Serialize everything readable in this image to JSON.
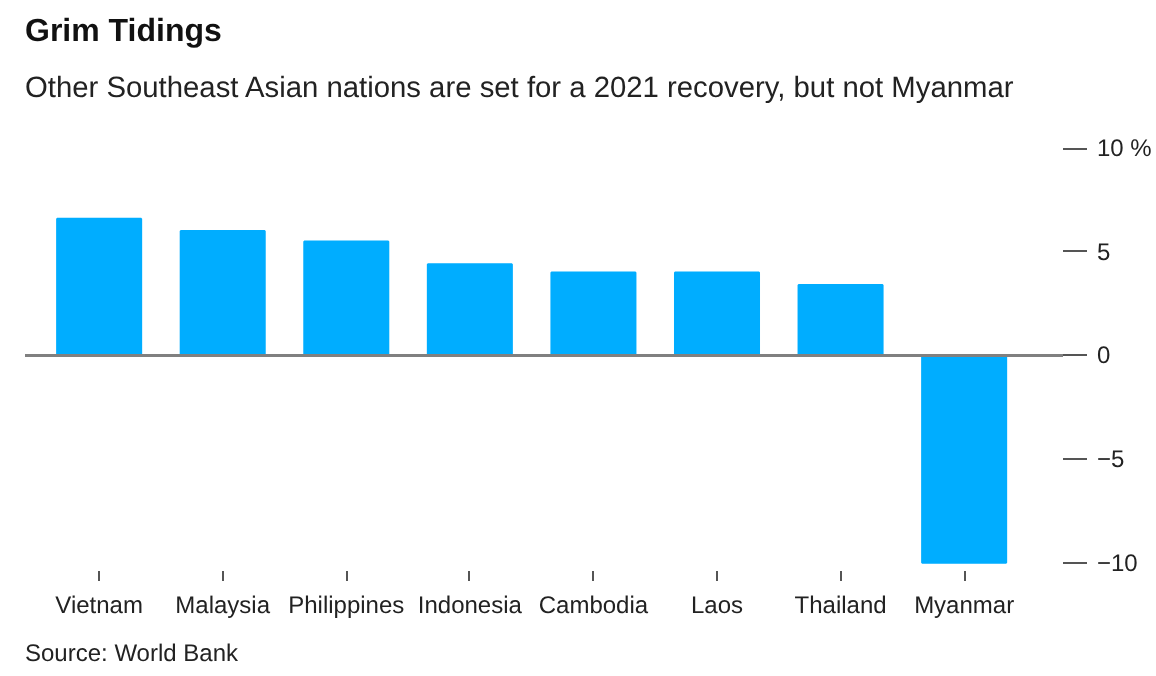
{
  "chart_data": {
    "type": "bar",
    "title": "Grim Tidings",
    "subtitle": "Other Southeast Asian nations are set for a 2021 recovery, but not Myanmar",
    "categories": [
      "Vietnam",
      "Malaysia",
      "Philippines",
      "Indonesia",
      "Cambodia",
      "Laos",
      "Thailand",
      "Myanmar"
    ],
    "values": [
      6.6,
      6.0,
      5.5,
      4.4,
      4.0,
      4.0,
      3.4,
      -10.0
    ],
    "color": "#00adff",
    "ylim": [
      -10,
      10
    ],
    "yticks": [
      {
        "value": 10,
        "label": "10 %"
      },
      5,
      0,
      -5,
      -10
    ],
    "grid": false,
    "ref_lines": [
      {
        "axis": "y",
        "value": 0,
        "color": "#808080"
      }
    ],
    "annotations": [
      "Source: World Bank"
    ]
  }
}
